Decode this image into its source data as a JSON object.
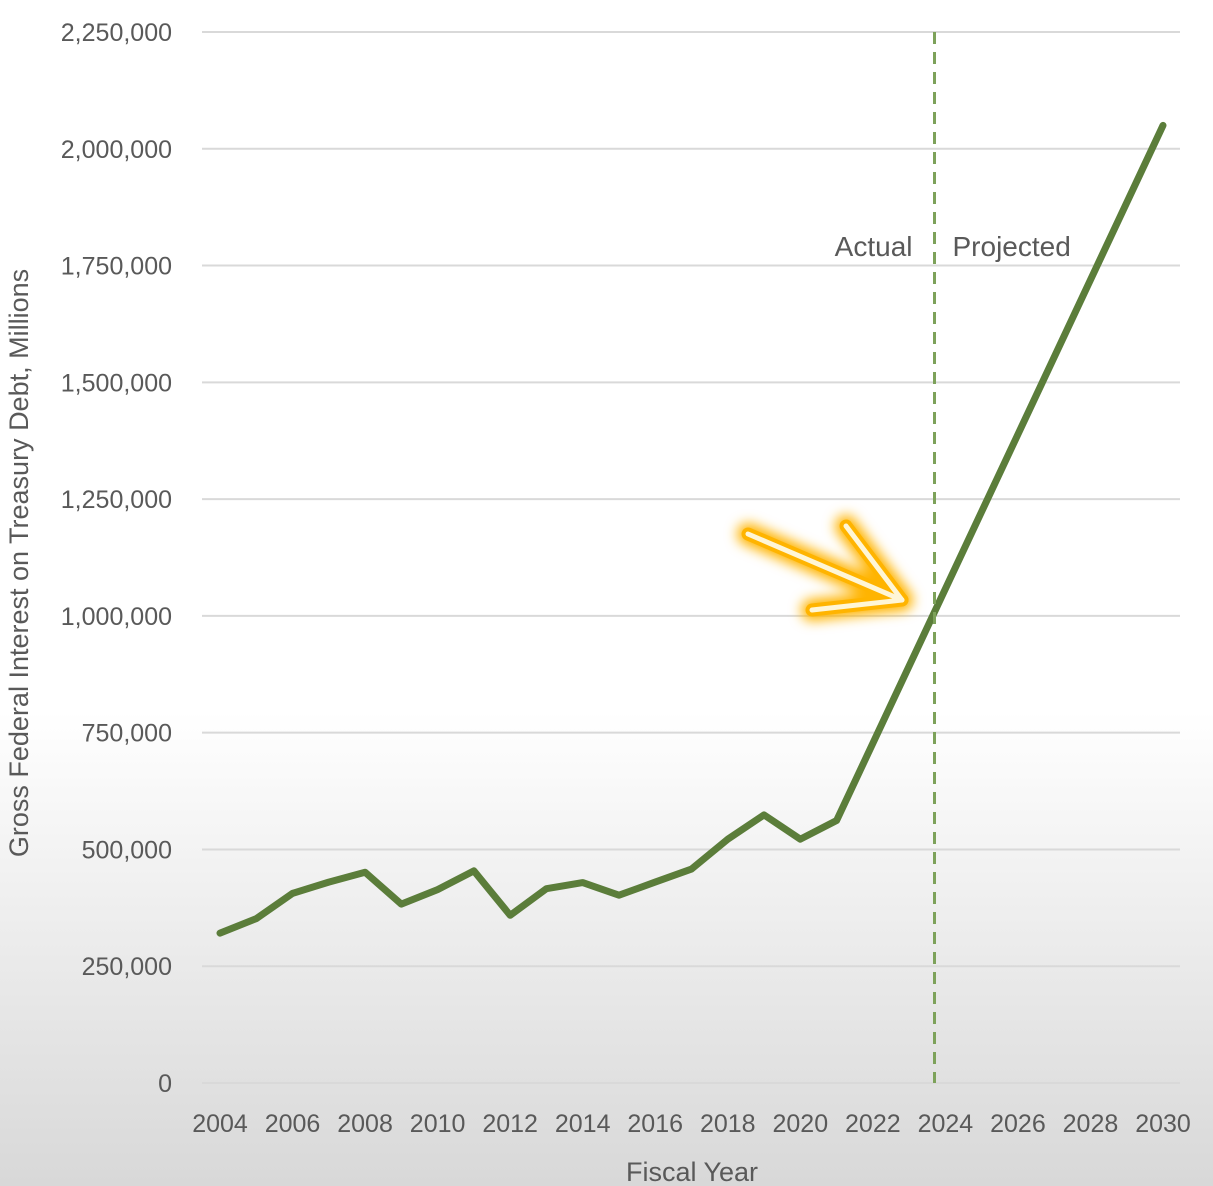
{
  "colors": {
    "series_line": "#5b7d3a",
    "grid": "#d9d9d9",
    "divider": "#7da25a",
    "arrow_glow": "#ffb400",
    "arrow_core": "#fff6d6"
  },
  "icons": {
    "arrow": "arrow-down-right-icon"
  },
  "chart_data": {
    "type": "line",
    "xlabel": "Fiscal Year",
    "ylabel": "Gross Federal Interest on Treasury Debt, Millions",
    "xlim": [
      2004,
      2030
    ],
    "ylim": [
      0,
      2250000
    ],
    "x_ticks": [
      "2004",
      "2006",
      "2008",
      "2010",
      "2012",
      "2014",
      "2016",
      "2018",
      "2020",
      "2022",
      "2024",
      "2026",
      "2028",
      "2030"
    ],
    "y_ticks": [
      "0",
      "250,000",
      "500,000",
      "750,000",
      "1,000,000",
      "1,250,000",
      "1,500,000",
      "1,750,000",
      "2,000,000",
      "2,250,000"
    ],
    "grid": "horizontal",
    "series": [
      {
        "x": [
          2004,
          2005,
          2006,
          2007,
          2008,
          2009,
          2010,
          2011,
          2012,
          2013,
          2014,
          2015,
          2016,
          2017,
          2018,
          2019,
          2020,
          2021,
          2030
        ],
        "values": [
          321000,
          352000,
          406000,
          430000,
          451000,
          383000,
          414000,
          454000,
          359000,
          416000,
          429000,
          402000,
          430000,
          458000,
          522000,
          574000,
          522000,
          562000,
          2050000
        ]
      }
    ],
    "divider_x": 2023.7,
    "annotations": {
      "left": "Actual",
      "right": "Projected"
    }
  }
}
